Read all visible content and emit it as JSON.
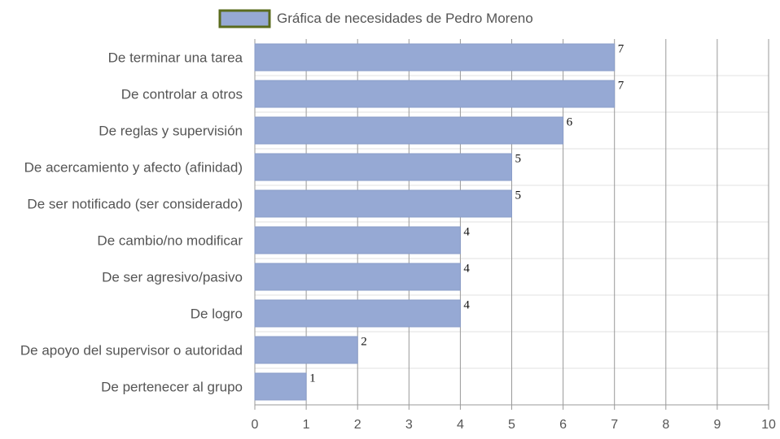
{
  "chart_data": {
    "type": "bar",
    "orientation": "horizontal",
    "categories": [
      "De terminar una tarea",
      "De controlar a otros",
      "De reglas y supervisión",
      "De acercamiento y afecto (afinidad)",
      "De ser notificado (ser considerado)",
      "De cambio/no modificar",
      "De ser agresivo/pasivo",
      "De logro",
      "De apoyo del supervisor o autoridad",
      "De pertenecer al grupo"
    ],
    "series": [
      {
        "name": "Gráfica de necesidades de Pedro Moreno",
        "values": [
          7,
          7,
          6,
          5,
          5,
          4,
          4,
          4,
          2,
          1
        ]
      }
    ],
    "xlim": [
      0,
      10
    ],
    "xticks": [
      "0",
      "1",
      "2",
      "3",
      "4",
      "5",
      "6",
      "7",
      "8",
      "9",
      "10"
    ],
    "grid": true,
    "legend": "top-center",
    "data_labels": true
  },
  "colors": {
    "bar_fill": "#96a9d4",
    "bar_stroke": "#8a9dc8",
    "legend_border": "#5a6b1e",
    "vertical_grid": "#999999",
    "horizontal_grid": "#e0e0e0",
    "axis": "#999999"
  }
}
